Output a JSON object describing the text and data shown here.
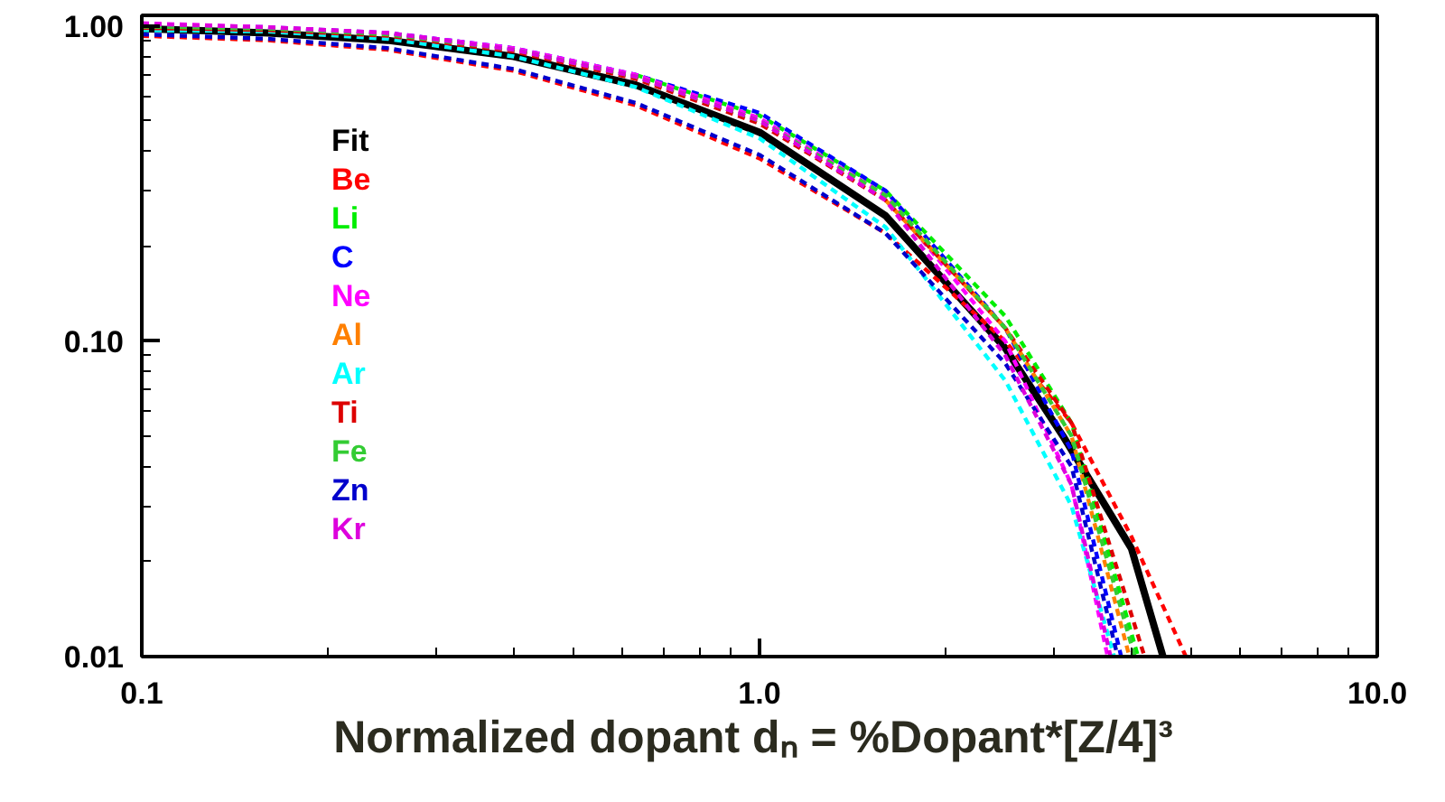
{
  "chart_data": {
    "type": "line",
    "xlabel": "Normalized dopant  dₙ = %Dopant*[Z/4]³",
    "log": "xy",
    "xlim": [
      0.1,
      10
    ],
    "ylim": [
      0.01,
      1.08
    ],
    "xticks": [
      0.1,
      {
        "value": 1,
        "label": "1.0"
      },
      {
        "value": 10,
        "label": "10.0"
      }
    ],
    "yticks": [
      {
        "value": 0.01,
        "label": "0.01"
      },
      {
        "value": 0.1,
        "label": "0.10"
      },
      {
        "value": 1,
        "label": "1.00"
      }
    ],
    "grid": false,
    "legend": "top left",
    "marker": "none",
    "series": [
      {
        "name": "Fit",
        "color": "#000000",
        "line_style": "solid",
        "x": [
          0.1,
          0.16,
          0.25,
          0.4,
          0.63,
          1.0,
          1.6,
          2.5,
          3.1,
          4.0,
          4.5
        ],
        "values": [
          0.98,
          0.95,
          0.9,
          0.8,
          0.65,
          0.46,
          0.25,
          0.095,
          0.05,
          0.022,
          0.01
        ]
      },
      {
        "name": "Be",
        "color": "#ff0000",
        "line_style": "dashed",
        "x": [
          0.1,
          0.16,
          0.25,
          0.4,
          0.63,
          1.0,
          1.6,
          2.5,
          3.2,
          4.0,
          4.9
        ],
        "values": [
          0.93,
          0.9,
          0.84,
          0.72,
          0.56,
          0.38,
          0.22,
          0.1,
          0.055,
          0.024,
          0.01
        ]
      },
      {
        "name": "Li",
        "color": "#00ee00",
        "line_style": "dashed",
        "x": [
          0.63,
          1.0,
          1.6,
          2.5,
          3.2,
          4.1
        ],
        "values": [
          0.7,
          0.52,
          0.3,
          0.12,
          0.055,
          0.01
        ]
      },
      {
        "name": "C",
        "color": "#0000ff",
        "line_style": "dashed",
        "x": [
          0.1,
          0.16,
          0.25,
          0.4,
          0.63,
          1.0,
          1.6,
          2.5,
          3.2,
          3.85
        ],
        "values": [
          1.01,
          0.99,
          0.95,
          0.85,
          0.7,
          0.53,
          0.3,
          0.11,
          0.045,
          0.01
        ]
      },
      {
        "name": "Ne",
        "color": "#ff00ff",
        "line_style": "dashed",
        "x": [
          0.1,
          0.16,
          0.25,
          0.4,
          0.63,
          1.0,
          1.6,
          2.5,
          3.2,
          3.66
        ],
        "values": [
          1.02,
          0.99,
          0.95,
          0.85,
          0.7,
          0.51,
          0.29,
          0.1,
          0.035,
          0.01
        ]
      },
      {
        "name": "Al",
        "color": "#ff8000",
        "line_style": "dashed",
        "x": [
          1.6,
          2.5,
          3.2,
          3.97
        ],
        "values": [
          0.28,
          0.11,
          0.05,
          0.01
        ]
      },
      {
        "name": "Ar",
        "color": "#00ffff",
        "line_style": "dashed",
        "x": [
          0.1,
          0.16,
          0.25,
          0.4,
          0.63,
          1.0,
          1.6,
          2.5,
          3.2,
          3.75
        ],
        "values": [
          0.97,
          0.96,
          0.91,
          0.8,
          0.64,
          0.44,
          0.23,
          0.075,
          0.03,
          0.01
        ]
      },
      {
        "name": "Ti",
        "color": "#dd0000",
        "line_style": "dashed",
        "x": [
          0.1,
          0.16,
          0.25,
          0.4,
          0.63,
          1.0,
          1.6,
          2.5,
          3.2,
          4.2
        ],
        "values": [
          0.985,
          0.97,
          0.93,
          0.83,
          0.68,
          0.49,
          0.28,
          0.11,
          0.055,
          0.01
        ]
      },
      {
        "name": "Fe",
        "color": "#33cc33",
        "line_style": "dashed",
        "x": [
          0.1,
          0.16,
          0.25,
          0.4,
          0.63,
          1.0,
          1.6,
          2.5,
          3.2,
          4.05
        ],
        "values": [
          0.995,
          0.98,
          0.94,
          0.84,
          0.69,
          0.5,
          0.29,
          0.11,
          0.05,
          0.01
        ]
      },
      {
        "name": "Zn",
        "color": "#0000cc",
        "line_style": "dashed",
        "x": [
          0.1,
          0.16,
          0.25,
          0.4,
          0.63,
          1.0,
          1.6,
          2.5,
          3.2,
          3.8
        ],
        "values": [
          0.94,
          0.91,
          0.85,
          0.73,
          0.57,
          0.39,
          0.22,
          0.085,
          0.04,
          0.01
        ]
      },
      {
        "name": "Kr",
        "color": "#dd00dd",
        "line_style": "dashed",
        "x": [
          0.1,
          0.16,
          0.25,
          0.4,
          0.63,
          1.0,
          1.6,
          2.5,
          3.2,
          3.7
        ],
        "values": [
          1.015,
          0.99,
          0.95,
          0.84,
          0.69,
          0.5,
          0.28,
          0.09,
          0.035,
          0.01
        ]
      }
    ]
  }
}
